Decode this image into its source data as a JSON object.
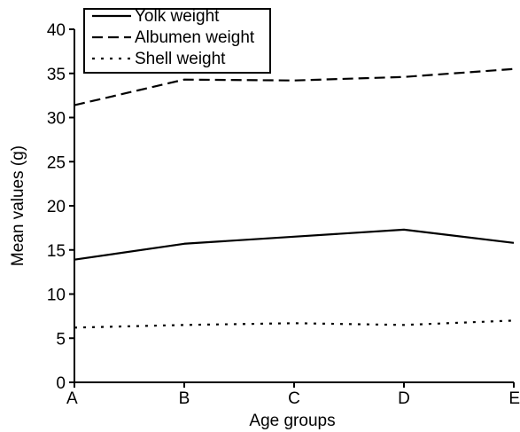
{
  "chart_data": {
    "type": "line",
    "title": "",
    "xlabel": "Age groups",
    "ylabel": "Mean values (g)",
    "categories": [
      "A",
      "B",
      "C",
      "D",
      "E"
    ],
    "ylim": [
      0,
      40
    ],
    "yticks": [
      0,
      5,
      10,
      15,
      20,
      25,
      30,
      35,
      40
    ],
    "grid": false,
    "legend_position": "top-left",
    "series": [
      {
        "name": "Yolk weight",
        "line_style": "solid",
        "color": "#000000",
        "values": [
          13.9,
          15.7,
          16.5,
          17.3,
          15.8
        ]
      },
      {
        "name": "Albumen weight",
        "line_style": "dashed",
        "color": "#000000",
        "values": [
          31.4,
          34.3,
          34.2,
          34.6,
          35.5
        ]
      },
      {
        "name": "Shell weight",
        "line_style": "dotted",
        "color": "#000000",
        "values": [
          6.2,
          6.5,
          6.7,
          6.5,
          7.0
        ]
      }
    ]
  }
}
